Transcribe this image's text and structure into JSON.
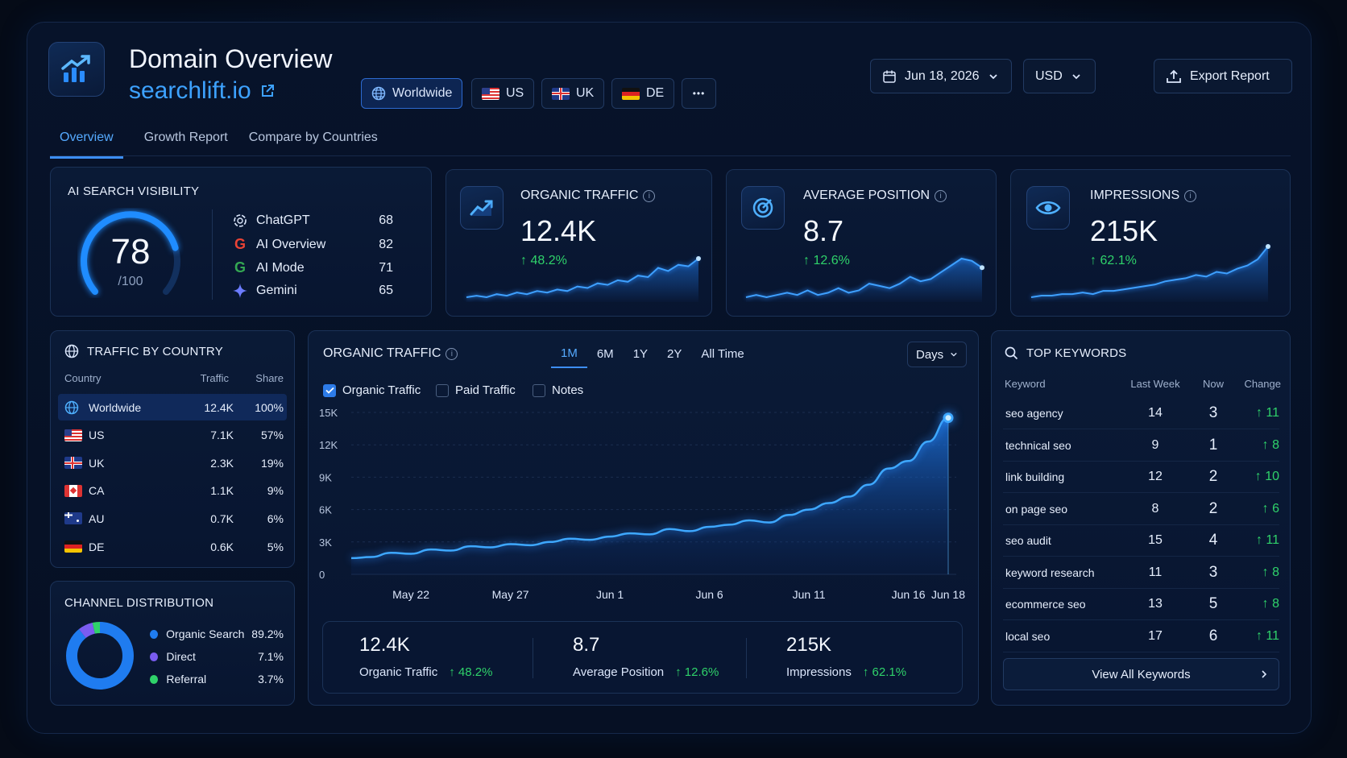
{
  "header": {
    "title": "Domain Overview",
    "domain": "searchlift.io",
    "regions": [
      {
        "label": "Worldwide",
        "active": true
      },
      {
        "label": "US"
      },
      {
        "label": "UK"
      },
      {
        "label": "DE"
      }
    ],
    "more": "•••",
    "date": "Jun 18, 2026",
    "currency": "USD",
    "export_label": "Export Report"
  },
  "tabs": [
    "Overview",
    "Growth Report",
    "Compare by Countries"
  ],
  "ai_visibility": {
    "title": "AI SEARCH VISIBILITY",
    "score": "78",
    "max": "/100",
    "score_fraction": 0.78,
    "items": [
      {
        "name": "ChatGPT",
        "value": "68"
      },
      {
        "name": "AI Overview",
        "value": "82"
      },
      {
        "name": "AI Mode",
        "value": "71"
      },
      {
        "name": "Gemini",
        "value": "65"
      }
    ]
  },
  "kpis": [
    {
      "title": "ORGANIC TRAFFIC",
      "value": "12.4K",
      "change": "↑ 48.2%",
      "spark": [
        3,
        4,
        3,
        5,
        4,
        6,
        5,
        7,
        6,
        8,
        7,
        10,
        9,
        12,
        11,
        14,
        13,
        17,
        16,
        22,
        20,
        24,
        23,
        28
      ]
    },
    {
      "title": "AVERAGE POSITION",
      "value": "8.7",
      "change": "↑ 12.6%",
      "spark": [
        3,
        4,
        3,
        4,
        5,
        4,
        6,
        4,
        5,
        7,
        5,
        6,
        9,
        8,
        7,
        9,
        12,
        10,
        11,
        14,
        17,
        20,
        19,
        16
      ]
    },
    {
      "title": "IMPRESSIONS",
      "value": "215K",
      "change": "↑ 62.1%",
      "spark": [
        2,
        3,
        3,
        4,
        4,
        5,
        4,
        6,
        6,
        7,
        8,
        9,
        10,
        12,
        13,
        14,
        16,
        15,
        18,
        17,
        20,
        22,
        26,
        34
      ]
    }
  ],
  "traffic_by_country": {
    "title": "TRAFFIC BY COUNTRY",
    "headers": [
      "Country",
      "Traffic",
      "Share"
    ],
    "rows": [
      {
        "country": "Worldwide",
        "traffic": "12.4K",
        "share": "100%"
      },
      {
        "country": "US",
        "traffic": "7.1K",
        "share": "57%"
      },
      {
        "country": "UK",
        "traffic": "2.3K",
        "share": "19%"
      },
      {
        "country": "CA",
        "traffic": "1.1K",
        "share": "9%"
      },
      {
        "country": "AU",
        "traffic": "0.7K",
        "share": "6%"
      },
      {
        "country": "DE",
        "traffic": "0.6K",
        "share": "5%"
      }
    ]
  },
  "channel_distribution": {
    "title": "CHANNEL DISTRIBUTION",
    "items": [
      {
        "name": "Organic Search",
        "value": "89.2%",
        "pct": 89.2,
        "color": "#1f7cf0"
      },
      {
        "name": "Direct",
        "value": "7.1%",
        "pct": 7.1,
        "color": "#7a5cf0"
      },
      {
        "name": "Referral",
        "value": "3.7%",
        "pct": 3.7,
        "color": "#2fd26a"
      }
    ]
  },
  "main_chart": {
    "title": "ORGANIC TRAFFIC",
    "ranges": [
      "1M",
      "6M",
      "1Y",
      "2Y",
      "All Time"
    ],
    "active_range": "1M",
    "granularity": "Days",
    "legend": [
      {
        "label": "Organic Traffic",
        "checked": true
      },
      {
        "label": "Paid Traffic",
        "checked": false
      },
      {
        "label": "Notes",
        "checked": false
      }
    ],
    "summary": [
      {
        "value": "12.4K",
        "label": "Organic Traffic",
        "change": "↑ 48.2%"
      },
      {
        "value": "8.7",
        "label": "Average Position",
        "change": "↑ 12.6%"
      },
      {
        "value": "215K",
        "label": "Impressions",
        "change": "↑ 62.1%"
      }
    ]
  },
  "chart_data": {
    "type": "area",
    "series": [
      {
        "name": "Organic Traffic",
        "values": [
          1500,
          1600,
          2000,
          1900,
          2300,
          2200,
          2600,
          2500,
          2800,
          2700,
          3000,
          3300,
          3200,
          3500,
          3800,
          3700,
          4200,
          4000,
          4400,
          4600,
          5000,
          4800,
          5500,
          6000,
          6600,
          7200,
          8300,
          9800,
          10500,
          12300,
          14500
        ]
      }
    ],
    "x": [
      "May 19",
      "May 20",
      "May 21",
      "May 22",
      "May 23",
      "May 24",
      "May 25",
      "May 26",
      "May 27",
      "May 28",
      "May 29",
      "May 30",
      "May 31",
      "Jun 1",
      "Jun 2",
      "Jun 3",
      "Jun 4",
      "Jun 5",
      "Jun 6",
      "Jun 7",
      "Jun 8",
      "Jun 9",
      "Jun 10",
      "Jun 11",
      "Jun 12",
      "Jun 13",
      "Jun 14",
      "Jun 15",
      "Jun 16",
      "Jun 17",
      "Jun 18"
    ],
    "x_ticks": [
      "May 22",
      "May 27",
      "Jun 1",
      "Jun 6",
      "Jun 11",
      "Jun 16",
      "Jun 18"
    ],
    "y_ticks": [
      "15K",
      "12K",
      "9K",
      "6K",
      "3K",
      "0"
    ],
    "ylim": [
      0,
      15000
    ],
    "grid": true
  },
  "top_keywords": {
    "title": "TOP KEYWORDS",
    "headers": [
      "Keyword",
      "Last Week",
      "Now",
      "Change"
    ],
    "rows": [
      {
        "keyword": "seo agency",
        "last": "14",
        "now": "3",
        "change": "↑ 11"
      },
      {
        "keyword": "technical seo",
        "last": "9",
        "now": "1",
        "change": "↑ 8"
      },
      {
        "keyword": "link building",
        "last": "12",
        "now": "2",
        "change": "↑ 10"
      },
      {
        "keyword": "on page seo",
        "last": "8",
        "now": "2",
        "change": "↑ 6"
      },
      {
        "keyword": "seo audit",
        "last": "15",
        "now": "4",
        "change": "↑ 11"
      },
      {
        "keyword": "keyword research",
        "last": "11",
        "now": "3",
        "change": "↑ 8"
      },
      {
        "keyword": "ecommerce seo",
        "last": "13",
        "now": "5",
        "change": "↑ 8"
      },
      {
        "keyword": "local seo",
        "last": "17",
        "now": "6",
        "change": "↑ 11"
      }
    ],
    "view_all": "View All Keywords"
  }
}
